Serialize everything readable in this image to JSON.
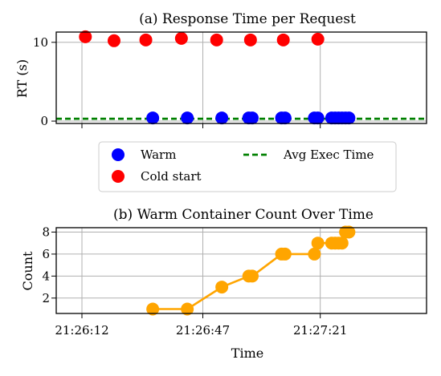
{
  "chart_data": [
    {
      "type": "scatter",
      "title": "(a) Response Time per Request",
      "xlabel": "",
      "ylabel": "RT (s)",
      "ylim": [
        -0.3,
        11.3
      ],
      "y_ticks": [
        "0",
        "10"
      ],
      "grid": true,
      "legend_placement": "below",
      "x_unit": "seconds after 21:26:12",
      "series": [
        {
          "name": "Warm",
          "color": "#0000ff",
          "marker": "circle",
          "points": [
            [
              20.5,
              0.4
            ],
            [
              30.5,
              0.4
            ],
            [
              40.5,
              0.4
            ],
            [
              48.3,
              0.4
            ],
            [
              49.3,
              0.4
            ],
            [
              57.8,
              0.4
            ],
            [
              58.8,
              0.4
            ],
            [
              67.3,
              0.4
            ],
            [
              68.3,
              0.4
            ],
            [
              72.3,
              0.4
            ],
            [
              73.3,
              0.4
            ],
            [
              74.3,
              0.4
            ],
            [
              75.3,
              0.4
            ],
            [
              76.3,
              0.4
            ],
            [
              77.3,
              0.4
            ]
          ]
        },
        {
          "name": "Cold start",
          "color": "#ff0000",
          "marker": "circle",
          "points": [
            [
              1,
              10.7
            ],
            [
              9.3,
              10.2
            ],
            [
              18.5,
              10.3
            ],
            [
              28.8,
              10.5
            ],
            [
              39,
              10.3
            ],
            [
              48.8,
              10.3
            ],
            [
              58.3,
              10.3
            ],
            [
              68.3,
              10.4
            ]
          ]
        },
        {
          "name": "Avg Exec Time",
          "color": "#008000",
          "style": "dashed",
          "y": 0.3
        }
      ]
    },
    {
      "type": "line",
      "title": "(b) Warm Container Count Over Time",
      "xlabel": "Time",
      "ylabel": "Count",
      "ylim": [
        0.6,
        8.4
      ],
      "y_ticks": [
        "2",
        "4",
        "6",
        "8"
      ],
      "x_ticks": [
        "21:26:12",
        "21:26:47",
        "21:27:21"
      ],
      "grid": true,
      "color": "#ffa500",
      "x_unit": "seconds after 21:26:12",
      "x": [
        20.5,
        30.5,
        40.5,
        48.3,
        49.3,
        57.8,
        58.8,
        67.3,
        68.3,
        72.3,
        73.3,
        74.3,
        75.3,
        76.3,
        77.3
      ],
      "values": [
        1,
        1,
        3,
        4,
        4,
        6,
        6,
        6,
        7,
        7,
        7,
        7,
        7,
        8,
        8
      ]
    }
  ]
}
